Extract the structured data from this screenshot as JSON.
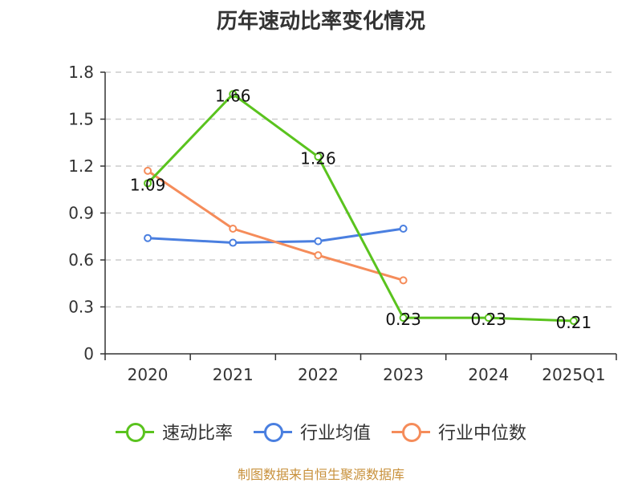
{
  "chart_data": {
    "type": "line",
    "title": "历年速动比率变化情况",
    "categories": [
      "2020",
      "2021",
      "2022",
      "2023",
      "2024",
      "2025Q1"
    ],
    "yticks": [
      "0",
      "0.3",
      "0.6",
      "0.9",
      "1.2",
      "1.5",
      "1.8"
    ],
    "ylim": [
      0,
      1.8
    ],
    "grid": true,
    "legend_position": "bottom",
    "series": [
      {
        "name": "速动比率",
        "color": "#5ac31e",
        "values": [
          1.09,
          1.66,
          1.26,
          0.23,
          0.23,
          0.21
        ],
        "labels": [
          "1.09",
          "1.66",
          "1.26",
          "0.23",
          "0.23",
          "0.21"
        ]
      },
      {
        "name": "行业均值",
        "color": "#4a7fe0",
        "values": [
          0.74,
          0.71,
          0.72,
          0.8,
          null,
          null
        ]
      },
      {
        "name": "行业中位数",
        "color": "#f58c5a",
        "values": [
          1.17,
          0.8,
          0.63,
          0.47,
          null,
          null
        ]
      }
    ]
  },
  "source": "制图数据来自恒生聚源数据库"
}
